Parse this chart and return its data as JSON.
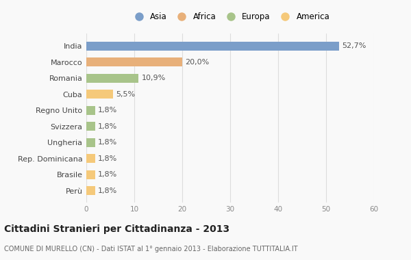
{
  "categories": [
    "Perù",
    "Brasile",
    "Rep. Dominicana",
    "Ungheria",
    "Svizzera",
    "Regno Unito",
    "Cuba",
    "Romania",
    "Marocco",
    "India"
  ],
  "values": [
    1.8,
    1.8,
    1.8,
    1.8,
    1.8,
    1.8,
    5.5,
    10.9,
    20.0,
    52.7
  ],
  "labels": [
    "1,8%",
    "1,8%",
    "1,8%",
    "1,8%",
    "1,8%",
    "1,8%",
    "5,5%",
    "10,9%",
    "20,0%",
    "52,7%"
  ],
  "colors": [
    "#f5c97a",
    "#f5c97a",
    "#f5c97a",
    "#a8c48a",
    "#a8c48a",
    "#a8c48a",
    "#f5c97a",
    "#a8c48a",
    "#e8b07a",
    "#7b9ec9"
  ],
  "legend_labels": [
    "Asia",
    "Africa",
    "Europa",
    "America"
  ],
  "legend_colors": [
    "#7b9ec9",
    "#e8b07a",
    "#a8c48a",
    "#f5c97a"
  ],
  "title": "Cittadini Stranieri per Cittadinanza - 2013",
  "subtitle": "COMUNE DI MURELLO (CN) - Dati ISTAT al 1° gennaio 2013 - Elaborazione TUTTITALIA.IT",
  "xlim": [
    0,
    60
  ],
  "xticks": [
    0,
    10,
    20,
    30,
    40,
    50,
    60
  ],
  "background_color": "#f9f9f9",
  "grid_color": "#dddddd",
  "bar_height": 0.55,
  "label_fontsize": 8,
  "ytick_fontsize": 8,
  "xtick_fontsize": 7.5,
  "title_fontsize": 10,
  "subtitle_fontsize": 7,
  "legend_fontsize": 8.5
}
